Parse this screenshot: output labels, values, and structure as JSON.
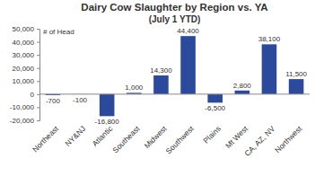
{
  "chart_data": {
    "type": "bar",
    "title": "Dairy Cow Slaughter by Region vs. YA",
    "subtitle": "(July 1 YTD)",
    "ylabel": "# of Head",
    "categories": [
      "Northeast",
      "NY&NJ",
      "Atlantic",
      "Southeast",
      "Midwest",
      "Southwest",
      "Plains",
      "Mt West",
      "CA, AZ, NV",
      "Northwest"
    ],
    "values": [
      -700,
      -100,
      -16800,
      1000,
      14300,
      44400,
      -6500,
      2800,
      38100,
      11500
    ],
    "value_labels": [
      "-700",
      "-100",
      "-16,800",
      "1,000",
      "14,300",
      "44,400",
      "-6,500",
      "2,800",
      "38,100",
      "11,500"
    ],
    "color": "#2b4a9b",
    "ylim": [
      -20000,
      50000
    ],
    "yticks": [
      {
        "value": -20000,
        "label": "-20,000"
      },
      {
        "value": -10000,
        "label": "-10,000"
      },
      0,
      {
        "value": 10000,
        "label": "10,000"
      },
      {
        "value": 20000,
        "label": "20,000"
      },
      {
        "value": 30000,
        "label": "30,000"
      },
      {
        "value": 40000,
        "label": "40,000"
      },
      {
        "value": 50000,
        "label": "50,000"
      }
    ],
    "grid": false,
    "data_labels": true
  }
}
